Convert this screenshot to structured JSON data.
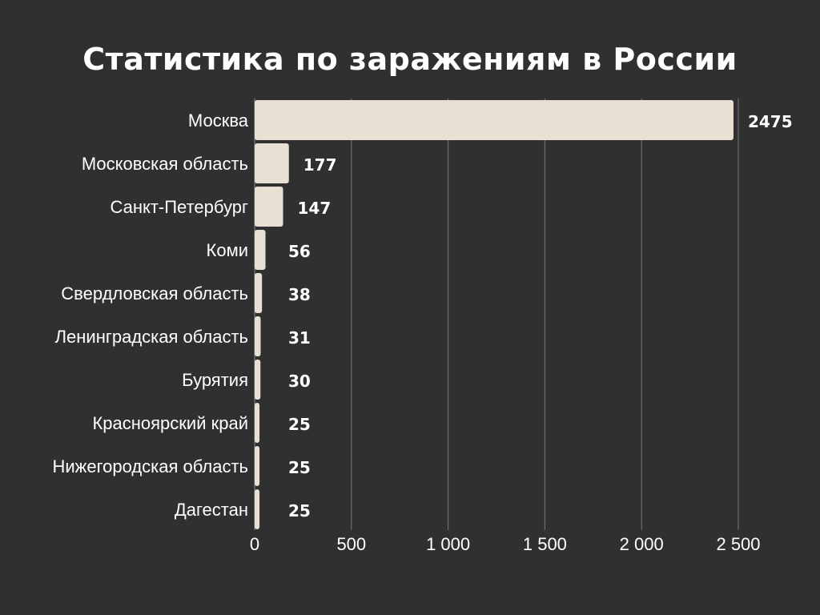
{
  "chart_data": {
    "type": "bar",
    "orientation": "horizontal",
    "title": "Статистика по заражениям в России",
    "categories": [
      "Москва",
      "Московская область",
      "Санкт-Петербург",
      "Коми",
      "Свердловская область",
      "Ленинградская область",
      "Бурятия",
      "Красноярский край",
      "Нижегородская область",
      "Дагестан"
    ],
    "values": [
      2475,
      177,
      147,
      56,
      38,
      31,
      30,
      25,
      25,
      25
    ],
    "value_labels": [
      "2475",
      "177",
      "147",
      "56",
      "38",
      "31",
      "30",
      "25",
      "25",
      "25"
    ],
    "xlim": [
      0,
      2500
    ],
    "xticks": [
      0,
      500,
      1000,
      1500,
      2000,
      2500
    ],
    "xtick_labels": [
      "0",
      "500",
      "1 000",
      "1 500",
      "2 000",
      "2 500"
    ],
    "grid": "vertical",
    "legend": "none",
    "colors": {
      "background": "#303030",
      "bar": "#e8e0d2",
      "text": "#ffffff",
      "grid": "#777777"
    }
  }
}
